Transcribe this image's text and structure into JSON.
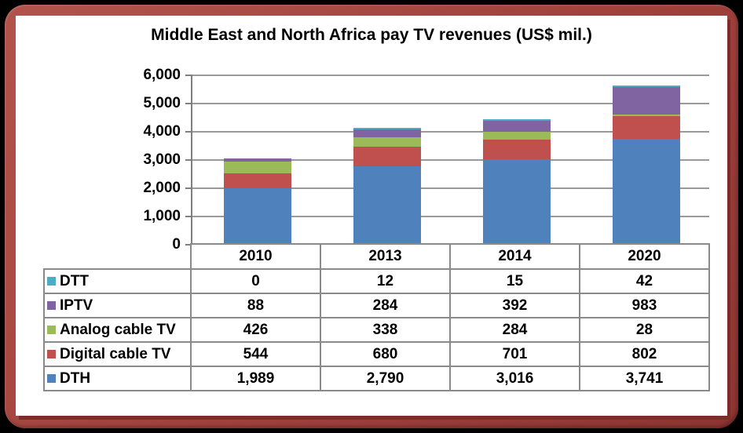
{
  "window": {
    "background_color": "#000000",
    "frame_color": "#a4443e",
    "frame_shadow_color": "#7c2d29",
    "panel_color": "#ffffff"
  },
  "chart_data": {
    "type": "bar",
    "stacked": true,
    "title": "Middle East and North Africa pay TV revenues (US$ mil.)",
    "categories": [
      "2010",
      "2013",
      "2014",
      "2020"
    ],
    "series": [
      {
        "name": "DTT",
        "color": "#4BACC6",
        "values": [
          0,
          12,
          15,
          42
        ]
      },
      {
        "name": "IPTV",
        "color": "#8064A2",
        "values": [
          88,
          284,
          392,
          983
        ]
      },
      {
        "name": "Analog cable TV",
        "color": "#9BBB59",
        "values": [
          426,
          338,
          284,
          28
        ]
      },
      {
        "name": "Digital cable TV",
        "color": "#C0504D",
        "values": [
          544,
          680,
          701,
          802
        ]
      },
      {
        "name": "DTH",
        "color": "#4F81BD",
        "values": [
          1989,
          2790,
          3016,
          3741
        ]
      }
    ],
    "stack_order_top_down": [
      "DTT",
      "IPTV",
      "Analog cable TV",
      "Digital cable TV",
      "DTH"
    ],
    "ylim": [
      0,
      6000
    ],
    "y_tick_step": 1000,
    "y_ticks": [
      "6,000",
      "5,000",
      "4,000",
      "3,000",
      "2,000",
      "1,000",
      "0"
    ],
    "grid": true,
    "gridline_color": "#9a9a9a",
    "axis_color": "#808080",
    "legend_position": "table-row-headers",
    "xlabel": "",
    "ylabel": ""
  }
}
